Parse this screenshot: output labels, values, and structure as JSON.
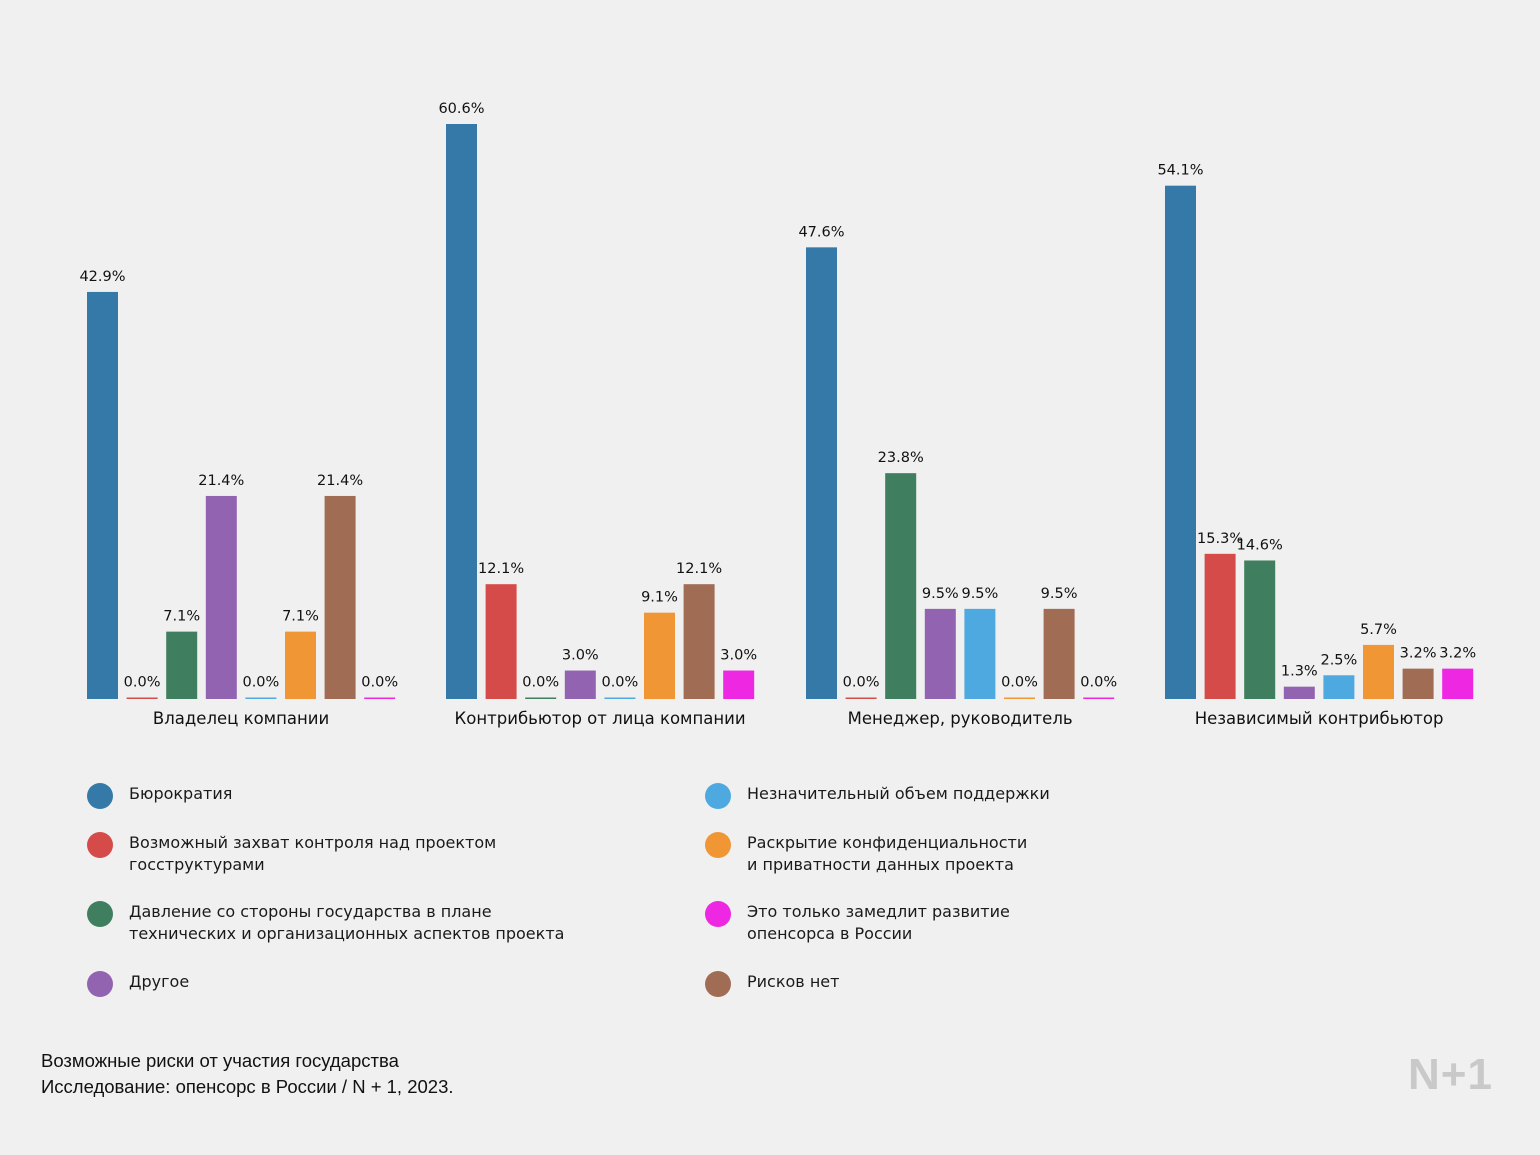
{
  "chart_data": {
    "type": "bar",
    "categories": [
      "Владелец компании",
      "Контрибьютор от лица компании",
      "Менеджер, руководитель",
      "Независимый контрибьютор"
    ],
    "series": [
      {
        "name": "Бюрократия",
        "color": "#3579a8",
        "values": [
          42.9,
          60.6,
          47.6,
          54.1
        ],
        "labels": [
          "42.9%",
          "60.6%",
          "47.6%",
          "54.1%"
        ]
      },
      {
        "name": "Возможный захват контроля над проектом\nгосструктурами",
        "color": "#d44b49",
        "values": [
          0.0,
          12.1,
          0.0,
          15.3
        ],
        "labels": [
          "0.0%",
          "12.1%",
          "0.0%",
          "15.3%"
        ]
      },
      {
        "name": "Давление со стороны государства в плане\nтехнических и организационных аспектов проекта",
        "color": "#3f7e5e",
        "values": [
          7.1,
          0.0,
          23.8,
          14.6
        ],
        "labels": [
          "7.1%",
          "0.0%",
          "23.8%",
          "14.6%"
        ]
      },
      {
        "name": "Другое",
        "color": "#9163b1",
        "values": [
          21.4,
          3.0,
          9.5,
          1.3
        ],
        "labels": [
          "21.4%",
          "3.0%",
          "9.5%",
          "1.3%"
        ]
      },
      {
        "name": "Незначительный объем поддержки",
        "color": "#4ea9e0",
        "values": [
          0.0,
          0.0,
          9.5,
          2.5
        ],
        "labels": [
          "0.0%",
          "0.0%",
          "9.5%",
          "2.5%"
        ]
      },
      {
        "name": "Раскрытие конфиденциальности\nи приватности данных проекта",
        "color": "#f09634",
        "values": [
          7.1,
          9.1,
          0.0,
          5.7
        ],
        "labels": [
          "7.1%",
          "9.1%",
          "0.0%",
          "5.7%"
        ]
      },
      {
        "name": "Рисков нет",
        "color": "#a06c54",
        "values": [
          21.4,
          12.1,
          9.5,
          3.2
        ],
        "labels": [
          "21.4%",
          "12.1%",
          "9.5%",
          "3.2%"
        ]
      },
      {
        "name": "Это только замедлит развитие\nопенсорса в России",
        "color": "#ee27e3",
        "values": [
          0.0,
          3.0,
          0.0,
          3.2
        ],
        "labels": [
          "0.0%",
          "3.0%",
          "0.0%",
          "3.2%"
        ]
      }
    ],
    "title": "",
    "xlabel": "",
    "ylabel": "",
    "ylim": [
      0,
      60.6
    ],
    "grid": false,
    "legend_position": "bottom",
    "legend_order": [
      0,
      4,
      1,
      5,
      2,
      7,
      3,
      6
    ]
  },
  "caption": {
    "line1": "Возможные риски от участия государства",
    "line2": "Исследование: опенсорс в России / N + 1, 2023."
  },
  "logo": "N+1",
  "colors": {
    "background": "#f0f0f0",
    "logo": "#c9c9c9"
  }
}
